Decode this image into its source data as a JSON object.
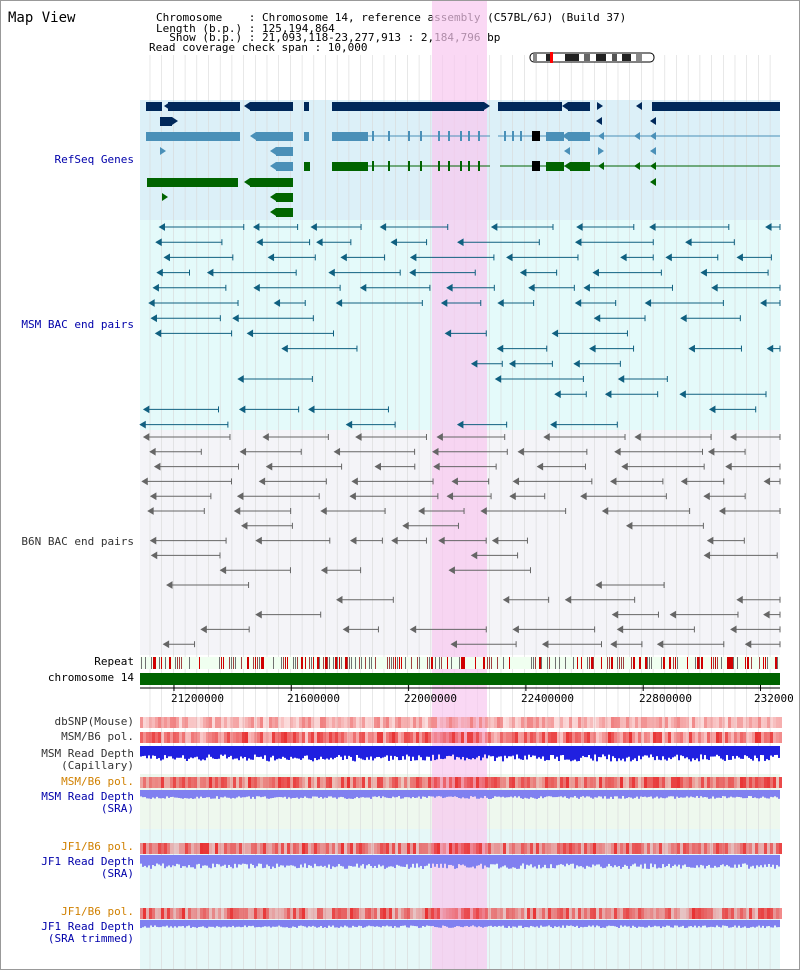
{
  "title": "Map View",
  "header": {
    "chromosome_line": "Chromosome    : Chromosome 14, reference assembly (C57BL/6J) (Build 37)",
    "length_line": "Length (b.p.) : 125,194,864",
    "show_line": "  Show (b.p.) : 21,093,118-23,277,913 : 2,184,796 bp",
    "span_line": "Read coverage check span : 10,000"
  },
  "tracks": {
    "refseq": "RefSeq Genes",
    "msm_bac": "MSM BAC end pairs",
    "b6n_bac": "B6N BAC end pairs",
    "repeat": "Repeat",
    "chromosome": "chromosome 14",
    "dbsnp": "dbSNP(Mouse)",
    "msm_b6_pol_1": "MSM/B6 pol.",
    "msm_read_depth_cap_1": "MSM Read Depth",
    "msm_read_depth_cap_2": "(Capillary)",
    "msm_b6_pol_2": "MSM/B6 pol.",
    "msm_read_depth_sra_1": "MSM Read Depth",
    "msm_read_depth_sra_2": "(SRA)",
    "jf1_b6_pol_1": "JF1/B6 pol.",
    "jf1_read_depth_sra_1": "JF1 Read Depth",
    "jf1_read_depth_sra_2": "(SRA)",
    "jf1_b6_pol_2": "JF1/B6 pol.",
    "jf1_read_depth_trim_1": "JF1 Read Depth",
    "jf1_read_depth_trim_2": "(SRA trimmed)"
  },
  "axis_ticks": [
    "21200000",
    "21600000",
    "22000000",
    "22400000",
    "22800000",
    "232000"
  ],
  "colors": {
    "refseq_bg": "#dcf0f8",
    "msm_bg": "#e4fafa",
    "b6n_bg": "#f4f4f8",
    "highlight": "#f8c8f0",
    "gene_dark": "#00285a",
    "gene_mid": "#4a90b8",
    "gene_green": "#006400",
    "bac_msm": "#106080",
    "bac_b6n": "#666666",
    "chromosome": "#006400",
    "pol_red": "#e83030",
    "depth_blue": "#2020e0",
    "depth_light": "#8080f0"
  }
}
